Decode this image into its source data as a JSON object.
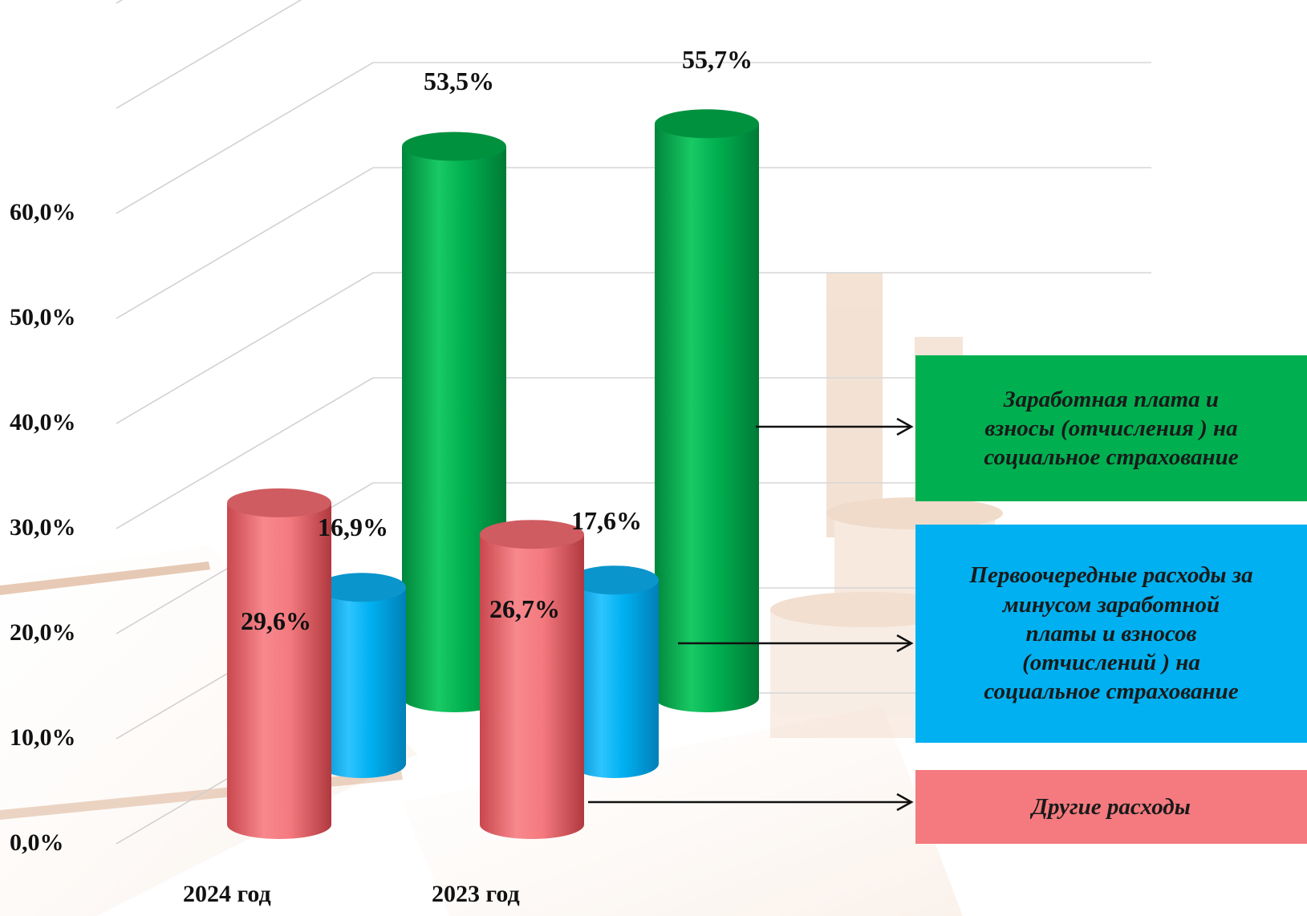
{
  "chart_data": {
    "type": "bar",
    "title": "",
    "xlabel": "",
    "ylabel": "",
    "ylim": [
      0,
      60
    ],
    "ytick_labels": [
      "0,0%",
      "10,0%",
      "20,0%",
      "30,0%",
      "40,0%",
      "50,0%",
      "60,0%"
    ],
    "categories": [
      "2024  год",
      "2023  год"
    ],
    "series": [
      {
        "name": "Другие расходы",
        "color": "#f47a7f",
        "values": [
          29.6,
          26.7
        ],
        "labels": [
          "29,6%",
          "26,7%"
        ]
      },
      {
        "name": "Первоочередные расходы за минусом заработной платы и  взносов (отчислений ) на социальное страхование",
        "color": "#00b0f0",
        "values": [
          16.9,
          17.6
        ],
        "labels": [
          "16,9%",
          "17,6%"
        ]
      },
      {
        "name": "Заработная плата и взносы (отчисления ) на социальное страхование",
        "color": "#00b050",
        "values": [
          53.5,
          55.7
        ],
        "labels": [
          "53,5%",
          "55,7%"
        ]
      }
    ],
    "grid": true,
    "legend_position": "right"
  },
  "legend": {
    "green_lines": [
      "Заработная плата и",
      "взносы (отчисления ) на",
      "социальное страхование"
    ],
    "blue_lines": [
      "Первоочередные расходы за",
      "минусом заработной",
      "платы и  взносов",
      "(отчислений ) на",
      "социальное страхование"
    ],
    "red_lines": [
      "Другие расходы"
    ]
  },
  "colors": {
    "green": "#00b050",
    "blue": "#00b0f0",
    "red": "#f47a7f",
    "green_legend_bg": "#00b050",
    "blue_legend_bg": "#00b0f0",
    "red_legend_bg": "#f47a7f"
  }
}
